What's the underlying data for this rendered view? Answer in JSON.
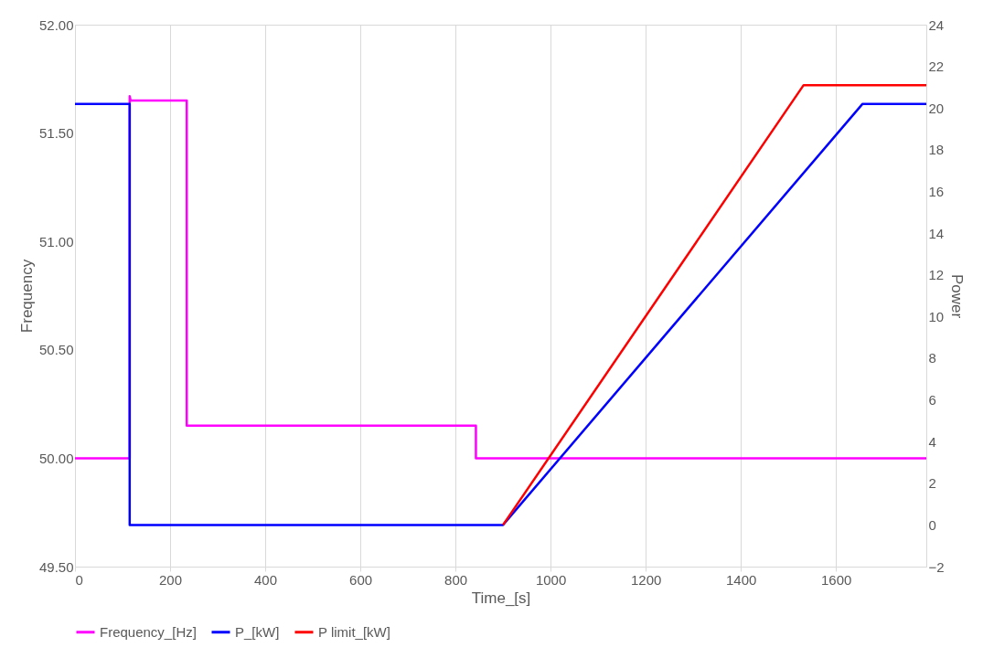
{
  "chart_data": {
    "type": "line",
    "xlabel": "Time_[s]",
    "ylabel": "Frequency",
    "y2label": "Power",
    "xlim": [
      0,
      1790
    ],
    "xticks": [
      0,
      200,
      400,
      600,
      800,
      1000,
      1200,
      1400,
      1600
    ],
    "ylim": [
      49.5,
      52.0
    ],
    "yticks": [
      {
        "value": 49.5,
        "label": "49.50"
      },
      {
        "value": 50.0,
        "label": "50.00"
      },
      {
        "value": 50.5,
        "label": "50.50"
      },
      {
        "value": 51.0,
        "label": "51.00"
      },
      {
        "value": 51.5,
        "label": "51.50"
      },
      {
        "value": 52.0,
        "label": "52.00"
      }
    ],
    "y2lim": [
      -2,
      24
    ],
    "y2ticks": [
      -2,
      0,
      2,
      4,
      6,
      8,
      10,
      12,
      14,
      16,
      18,
      20,
      22,
      24
    ],
    "grid": "x",
    "legend": "bottom",
    "line_style": "solid",
    "marker": "none",
    "series": [
      {
        "name": "Frequency_[Hz]",
        "color": "#ff00ff",
        "x": [
          0,
          115,
          115,
          117,
          235,
          235,
          843,
          843,
          1790
        ],
        "values": [
          50.0,
          50.0,
          51.67,
          51.65,
          51.65,
          50.15,
          50.15,
          50.0,
          50.0
        ]
      },
      {
        "name": "P_[kW]",
        "color": "#0000ff",
        "axis": "y2",
        "x": [
          0,
          115,
          115,
          900,
          1656,
          1790
        ],
        "values": [
          20.2,
          20.2,
          0,
          0,
          20.2,
          20.2
        ]
      },
      {
        "name": "P limit_[kW]",
        "color": "#ff0000",
        "axis": "y2",
        "x": [
          900,
          1532,
          1790
        ],
        "values": [
          0,
          21.1,
          21.1
        ]
      }
    ]
  }
}
